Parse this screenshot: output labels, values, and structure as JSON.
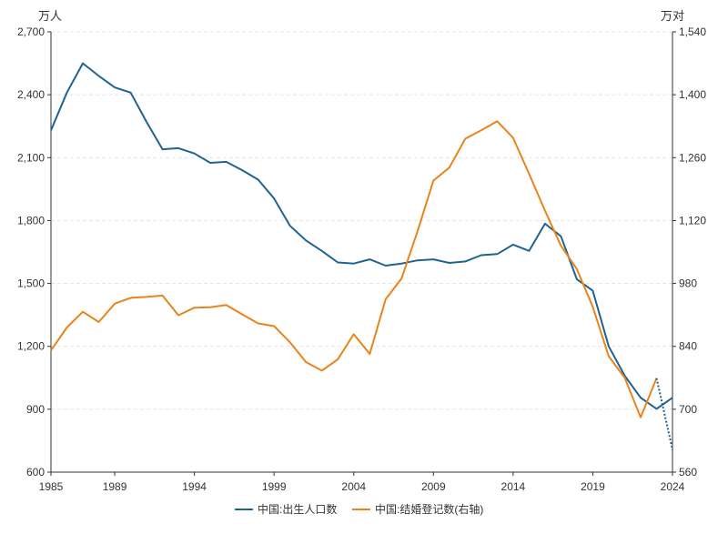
{
  "chart_data": {
    "type": "line",
    "y_left_unit": "万人",
    "y_right_unit": "万对",
    "x_ticks": [
      "1985",
      "1989",
      "1994",
      "1999",
      "2004",
      "2009",
      "2014",
      "2019",
      "2024"
    ],
    "y_left_ticks": [
      "600",
      "900",
      "1,200",
      "1,500",
      "1,800",
      "2,100",
      "2,400",
      "2,700"
    ],
    "y_right_ticks": [
      "560",
      "700",
      "840",
      "980",
      "1,120",
      "1,260",
      "1,400",
      "1,540"
    ],
    "xlim": [
      1985,
      2024
    ],
    "ylim_left": [
      600,
      2700
    ],
    "ylim_right": [
      560,
      1540
    ],
    "grid": "horizontal dashed",
    "legend_position": "bottom",
    "colors": {
      "births": "#1f6391",
      "marriages": "#e8841a"
    },
    "series": [
      {
        "name": "中国:出生人口数",
        "axis": "left",
        "x": [
          1985,
          1986,
          1987,
          1988,
          1989,
          1990,
          1991,
          1992,
          1993,
          1994,
          1995,
          1996,
          1997,
          1998,
          1999,
          2000,
          2001,
          2002,
          2003,
          2004,
          2005,
          2006,
          2007,
          2008,
          2009,
          2010,
          2011,
          2012,
          2013,
          2014,
          2015,
          2016,
          2017,
          2018,
          2019,
          2020,
          2021,
          2022,
          2023,
          2024
        ],
        "values": [
          2230,
          2410,
          2550,
          2490,
          2435,
          2410,
          2270,
          2140,
          2145,
          2120,
          2075,
          2080,
          2040,
          1995,
          1905,
          1775,
          1705,
          1655,
          1600,
          1595,
          1615,
          1585,
          1595,
          1610,
          1615,
          1598,
          1605,
          1635,
          1640,
          1685,
          1655,
          1785,
          1725,
          1520,
          1465,
          1200,
          1060,
          955,
          902,
          955
        ]
      },
      {
        "name": "中国:结婚登记数(右轴)",
        "axis": "right",
        "x": [
          1985,
          1986,
          1987,
          1988,
          1989,
          1990,
          1991,
          1992,
          1993,
          1994,
          1995,
          1996,
          1997,
          1998,
          1999,
          2000,
          2001,
          2002,
          2003,
          2004,
          2005,
          2006,
          2007,
          2008,
          2009,
          2010,
          2011,
          2012,
          2013,
          2014,
          2015,
          2016,
          2017,
          2018,
          2019,
          2020,
          2021,
          2022,
          2023,
          2024
        ],
        "values": [
          831,
          882,
          917,
          894,
          935,
          948,
          950,
          953,
          909,
          926,
          927,
          932,
          911,
          891,
          885,
          849,
          805,
          786,
          811,
          867,
          823,
          945,
          991,
          1096,
          1209,
          1238,
          1302,
          1321,
          1341,
          1304,
          1224,
          1142,
          1064,
          1012,
          928,
          818,
          770,
          682,
          769,
          610
        ]
      }
    ]
  }
}
